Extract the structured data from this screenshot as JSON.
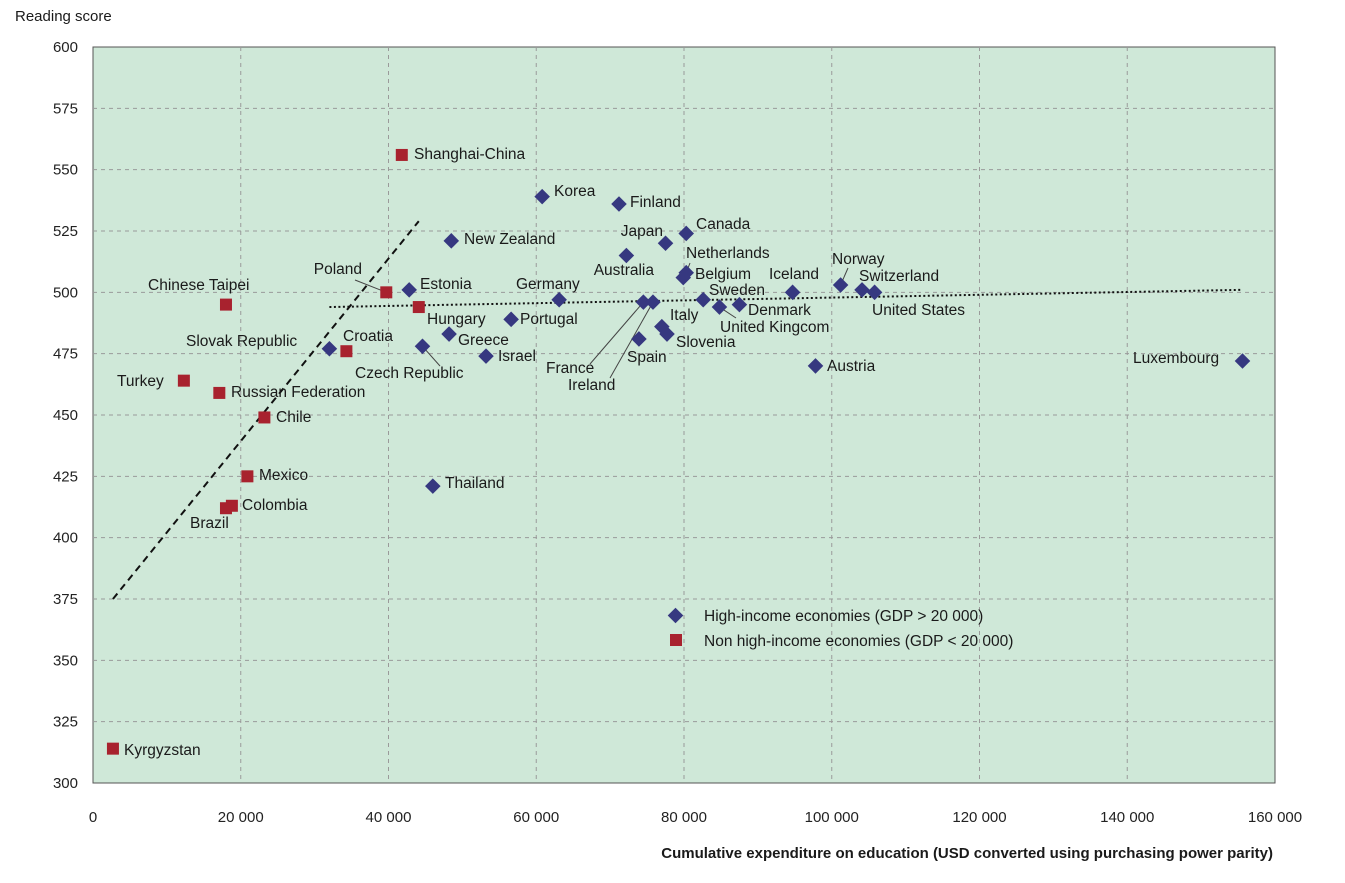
{
  "chart_data": {
    "type": "scatter",
    "title": "",
    "xlabel": "Cumulative expenditure on education (USD converted using purchasing power parity)",
    "ylabel": "Reading score",
    "xlim": [
      0,
      160000
    ],
    "ylim": [
      300,
      600
    ],
    "xticks": [
      0,
      20000,
      40000,
      60000,
      80000,
      100000,
      120000,
      140000,
      160000
    ],
    "xtick_labels": [
      "0",
      "20 000",
      "40 000",
      "60 000",
      "80 000",
      "100 000",
      "120 000",
      "140 000",
      "160 000"
    ],
    "yticks": [
      300,
      325,
      350,
      375,
      400,
      425,
      450,
      475,
      500,
      525,
      550,
      575,
      600
    ],
    "grid": true,
    "background": "#cfe8d8",
    "legend_position": "bottom-center",
    "series": [
      {
        "name": "High-income economies (GDP > 20 000)",
        "marker": "diamond",
        "color": "#363880",
        "points": [
          {
            "label": "Korea",
            "x": 60800,
            "y": 539
          },
          {
            "label": "Finland",
            "x": 71200,
            "y": 536
          },
          {
            "label": "Canada",
            "x": 80300,
            "y": 524
          },
          {
            "label": "Japan",
            "x": 77500,
            "y": 520
          },
          {
            "label": "New Zealand",
            "x": 48500,
            "y": 521
          },
          {
            "label": "Australia",
            "x": 72200,
            "y": 515
          },
          {
            "label": "Netherlands",
            "x": 80300,
            "y": 508
          },
          {
            "label": "Belgium",
            "x": 79900,
            "y": 506
          },
          {
            "label": "Norway",
            "x": 101200,
            "y": 503
          },
          {
            "label": "Switzerland",
            "x": 104100,
            "y": 501
          },
          {
            "label": "United States",
            "x": 105800,
            "y": 500
          },
          {
            "label": "Iceland",
            "x": 94700,
            "y": 500
          },
          {
            "label": "Estonia",
            "x": 42800,
            "y": 501
          },
          {
            "label": "Germany",
            "x": 63100,
            "y": 497
          },
          {
            "label": "Sweden",
            "x": 82600,
            "y": 497
          },
          {
            "label": "Denmark",
            "x": 87500,
            "y": 495
          },
          {
            "label": "United Kingcom",
            "x": 84800,
            "y": 494
          },
          {
            "label": "France",
            "x": 74500,
            "y": 496
          },
          {
            "label": "Ireland",
            "x": 75800,
            "y": 496
          },
          {
            "label": "Portugal",
            "x": 56600,
            "y": 489
          },
          {
            "label": "Greece",
            "x": 48200,
            "y": 483
          },
          {
            "label": "Italy",
            "x": 77000,
            "y": 486
          },
          {
            "label": "Slovenia",
            "x": 77700,
            "y": 483
          },
          {
            "label": "Spain",
            "x": 73900,
            "y": 481
          },
          {
            "label": "Slovak Republic",
            "x": 32000,
            "y": 477
          },
          {
            "label": "Czech Republic",
            "x": 44600,
            "y": 478
          },
          {
            "label": "Israel",
            "x": 53200,
            "y": 474
          },
          {
            "label": "Austria",
            "x": 97800,
            "y": 470
          },
          {
            "label": "Luxembourg",
            "x": 155600,
            "y": 472
          },
          {
            "label": "Thailand",
            "x": 46000,
            "y": 421
          }
        ]
      },
      {
        "name": "Non high-income economies (GDP < 20 000)",
        "marker": "square",
        "color": "#a8222e",
        "points": [
          {
            "label": "Shanghai-China",
            "x": 41800,
            "y": 556
          },
          {
            "label": "Poland",
            "x": 39700,
            "y": 500
          },
          {
            "label": "Chinese Taipei",
            "x": 18000,
            "y": 495
          },
          {
            "label": "Hungary",
            "x": 44100,
            "y": 494
          },
          {
            "label": "Croatia",
            "x": 34300,
            "y": 476
          },
          {
            "label": "Turkey",
            "x": 12300,
            "y": 464
          },
          {
            "label": "Russian Federation",
            "x": 17100,
            "y": 459
          },
          {
            "label": "Chile",
            "x": 23200,
            "y": 449
          },
          {
            "label": "Mexico",
            "x": 20900,
            "y": 425
          },
          {
            "label": "Colombia",
            "x": 18800,
            "y": 413
          },
          {
            "label": "Brazil",
            "x": 18000,
            "y": 412
          },
          {
            "label": "Kyrgyzstan",
            "x": 2700,
            "y": 314
          }
        ]
      }
    ],
    "trend_lines": [
      {
        "style": "dashed",
        "from": {
          "x": 2700,
          "y": 375
        },
        "to": {
          "x": 44100,
          "y": 529
        }
      },
      {
        "style": "dotted",
        "from": {
          "x": 32000,
          "y": 494
        },
        "to": {
          "x": 155300,
          "y": 501
        }
      }
    ]
  }
}
